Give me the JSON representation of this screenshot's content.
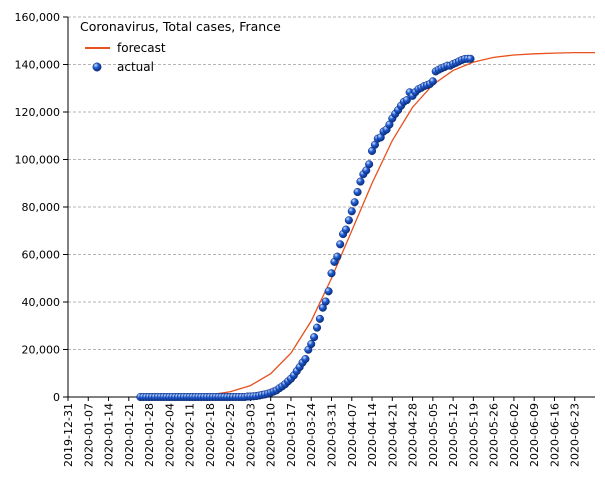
{
  "chart_data": {
    "type": "line",
    "title": "Coronavirus, Total cases, France",
    "xlabel": "",
    "ylabel": "",
    "x_axis": {
      "kind": "date",
      "start": "2019-12-31",
      "end": "2020-06-30",
      "tick_labels": [
        "2019-12-31",
        "2020-01-07",
        "2020-01-14",
        "2020-01-21",
        "2020-01-28",
        "2020-02-04",
        "2020-02-11",
        "2020-02-18",
        "2020-02-25",
        "2020-03-03",
        "2020-03-10",
        "2020-03-17",
        "2020-03-24",
        "2020-03-31",
        "2020-04-07",
        "2020-04-14",
        "2020-04-21",
        "2020-04-28",
        "2020-05-05",
        "2020-05-12",
        "2020-05-19",
        "2020-05-26",
        "2020-06-02",
        "2020-06-09",
        "2020-06-16",
        "2020-06-23"
      ]
    },
    "ylim": [
      0,
      160000
    ],
    "y_ticks": [
      0,
      20000,
      40000,
      60000,
      80000,
      100000,
      120000,
      140000,
      160000
    ],
    "y_tick_labels": [
      "0",
      "20,000",
      "40,000",
      "60,000",
      "80,000",
      "100,000",
      "120,000",
      "140,000",
      "160,000"
    ],
    "grid": true,
    "grid_style": "dashed horizontal",
    "legend_position": "top-left",
    "series": [
      {
        "name": "forecast",
        "style": "line",
        "color": "#e8501e",
        "points": [
          [
            "2020-01-24",
            0
          ],
          [
            "2020-02-04",
            100
          ],
          [
            "2020-02-11",
            350
          ],
          [
            "2020-02-18",
            900
          ],
          [
            "2020-02-25",
            2200
          ],
          [
            "2020-03-03",
            4800
          ],
          [
            "2020-03-10",
            9800
          ],
          [
            "2020-03-17",
            18500
          ],
          [
            "2020-03-24",
            32000
          ],
          [
            "2020-03-31",
            50000
          ],
          [
            "2020-04-07",
            70000
          ],
          [
            "2020-04-14",
            90000
          ],
          [
            "2020-04-21",
            108000
          ],
          [
            "2020-04-28",
            122000
          ],
          [
            "2020-05-05",
            131500
          ],
          [
            "2020-05-12",
            137500
          ],
          [
            "2020-05-19",
            141000
          ],
          [
            "2020-05-26",
            143000
          ],
          [
            "2020-06-02",
            144000
          ],
          [
            "2020-06-09",
            144500
          ],
          [
            "2020-06-16",
            144800
          ],
          [
            "2020-06-23",
            145000
          ],
          [
            "2020-06-30",
            145000
          ]
        ]
      },
      {
        "name": "actual",
        "style": "marker",
        "color": "#1f5bd6",
        "points": [
          [
            "2020-01-25",
            0
          ],
          [
            "2020-01-26",
            0
          ],
          [
            "2020-01-27",
            0
          ],
          [
            "2020-01-28",
            0
          ],
          [
            "2020-01-29",
            0
          ],
          [
            "2020-01-30",
            0
          ],
          [
            "2020-01-31",
            0
          ],
          [
            "2020-02-01",
            0
          ],
          [
            "2020-02-02",
            0
          ],
          [
            "2020-02-03",
            0
          ],
          [
            "2020-02-04",
            0
          ],
          [
            "2020-02-05",
            0
          ],
          [
            "2020-02-06",
            0
          ],
          [
            "2020-02-07",
            0
          ],
          [
            "2020-02-08",
            0
          ],
          [
            "2020-02-09",
            0
          ],
          [
            "2020-02-10",
            0
          ],
          [
            "2020-02-11",
            0
          ],
          [
            "2020-02-12",
            0
          ],
          [
            "2020-02-13",
            0
          ],
          [
            "2020-02-14",
            0
          ],
          [
            "2020-02-15",
            0
          ],
          [
            "2020-02-16",
            0
          ],
          [
            "2020-02-17",
            0
          ],
          [
            "2020-02-18",
            0
          ],
          [
            "2020-02-19",
            0
          ],
          [
            "2020-02-20",
            0
          ],
          [
            "2020-02-21",
            0
          ],
          [
            "2020-02-22",
            0
          ],
          [
            "2020-02-23",
            0
          ],
          [
            "2020-02-24",
            0
          ],
          [
            "2020-02-25",
            0
          ],
          [
            "2020-02-26",
            0
          ],
          [
            "2020-02-27",
            0
          ],
          [
            "2020-02-28",
            0
          ],
          [
            "2020-02-29",
            0
          ],
          [
            "2020-03-01",
            0
          ],
          [
            "2020-03-02",
            200
          ],
          [
            "2020-03-03",
            200
          ],
          [
            "2020-03-04",
            300
          ],
          [
            "2020-03-05",
            400
          ],
          [
            "2020-03-06",
            600
          ],
          [
            "2020-03-07",
            900
          ],
          [
            "2020-03-08",
            1100
          ],
          [
            "2020-03-09",
            1400
          ],
          [
            "2020-03-10",
            1800
          ],
          [
            "2020-03-11",
            2300
          ],
          [
            "2020-03-12",
            2800
          ],
          [
            "2020-03-13",
            3700
          ],
          [
            "2020-03-14",
            4500
          ],
          [
            "2020-03-15",
            5400
          ],
          [
            "2020-03-16",
            6600
          ],
          [
            "2020-03-17",
            7700
          ],
          [
            "2020-03-18",
            9100
          ],
          [
            "2020-03-19",
            10900
          ],
          [
            "2020-03-20",
            12600
          ],
          [
            "2020-03-21",
            14500
          ],
          [
            "2020-03-22",
            16000
          ],
          [
            "2020-03-23",
            19900
          ],
          [
            "2020-03-24",
            22300
          ],
          [
            "2020-03-25",
            25200
          ],
          [
            "2020-03-26",
            29200
          ],
          [
            "2020-03-27",
            32900
          ],
          [
            "2020-03-28",
            37600
          ],
          [
            "2020-03-29",
            40200
          ],
          [
            "2020-03-30",
            44500
          ],
          [
            "2020-03-31",
            52100
          ],
          [
            "2020-04-01",
            56900
          ],
          [
            "2020-04-02",
            59100
          ],
          [
            "2020-04-03",
            64300
          ],
          [
            "2020-04-04",
            68600
          ],
          [
            "2020-04-05",
            70500
          ],
          [
            "2020-04-06",
            74400
          ],
          [
            "2020-04-07",
            78200
          ],
          [
            "2020-04-08",
            82000
          ],
          [
            "2020-04-09",
            86300
          ],
          [
            "2020-04-10",
            90700
          ],
          [
            "2020-04-11",
            93800
          ],
          [
            "2020-04-12",
            95400
          ],
          [
            "2020-04-13",
            98000
          ],
          [
            "2020-04-14",
            103600
          ],
          [
            "2020-04-15",
            106200
          ],
          [
            "2020-04-16",
            108800
          ],
          [
            "2020-04-17",
            109300
          ],
          [
            "2020-04-18",
            111800
          ],
          [
            "2020-04-19",
            112600
          ],
          [
            "2020-04-20",
            114700
          ],
          [
            "2020-04-21",
            117300
          ],
          [
            "2020-04-22",
            119200
          ],
          [
            "2020-04-23",
            120800
          ],
          [
            "2020-04-24",
            122600
          ],
          [
            "2020-04-25",
            124300
          ],
          [
            "2020-04-26",
            125000
          ],
          [
            "2020-04-27",
            128300
          ],
          [
            "2020-04-28",
            126800
          ],
          [
            "2020-04-29",
            128400
          ],
          [
            "2020-04-30",
            129600
          ],
          [
            "2020-05-01",
            130200
          ],
          [
            "2020-05-02",
            130900
          ],
          [
            "2020-05-03",
            131300
          ],
          [
            "2020-05-04",
            131800
          ],
          [
            "2020-05-05",
            132900
          ],
          [
            "2020-05-06",
            137100
          ],
          [
            "2020-05-07",
            137800
          ],
          [
            "2020-05-08",
            138400
          ],
          [
            "2020-05-09",
            138900
          ],
          [
            "2020-05-10",
            139500
          ],
          [
            "2020-05-11",
            139500
          ],
          [
            "2020-05-12",
            140200
          ],
          [
            "2020-05-13",
            140700
          ],
          [
            "2020-05-14",
            141300
          ],
          [
            "2020-05-15",
            141900
          ],
          [
            "2020-05-16",
            142300
          ],
          [
            "2020-05-17",
            142400
          ],
          [
            "2020-05-18",
            142400
          ]
        ]
      }
    ]
  }
}
